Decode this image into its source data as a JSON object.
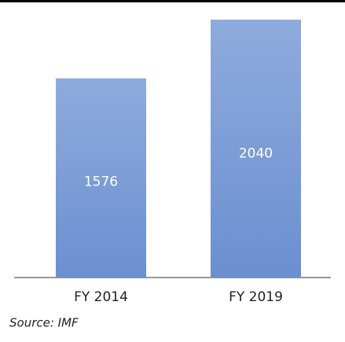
{
  "chart_data": {
    "type": "bar",
    "categories": [
      "FY 2014",
      "FY 2019"
    ],
    "values": [
      1576,
      2040
    ],
    "color": "#7d9fd8",
    "source": "Source: IMF"
  }
}
